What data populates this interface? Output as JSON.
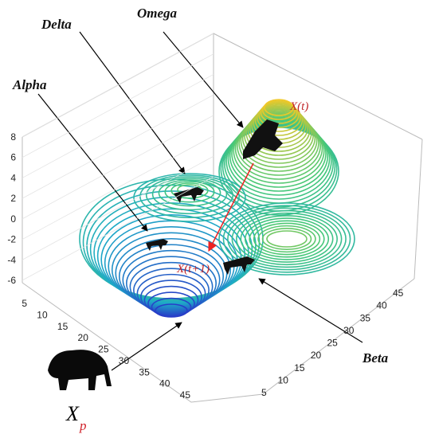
{
  "labels": {
    "omega": "Omega",
    "delta": "Delta",
    "alpha": "Alpha",
    "beta": "Beta",
    "xt": "X(t)",
    "xt1": "X(t+1)",
    "xp": "X",
    "xp_sub": "p"
  },
  "z_ticks": [
    8,
    6,
    4,
    2,
    0,
    -2,
    -4,
    -6
  ],
  "x_ticks": [
    5,
    10,
    15,
    20,
    25,
    30,
    35,
    40,
    45
  ],
  "y_ticks": [
    5,
    10,
    15,
    20,
    25,
    30,
    35,
    40,
    45
  ]
}
